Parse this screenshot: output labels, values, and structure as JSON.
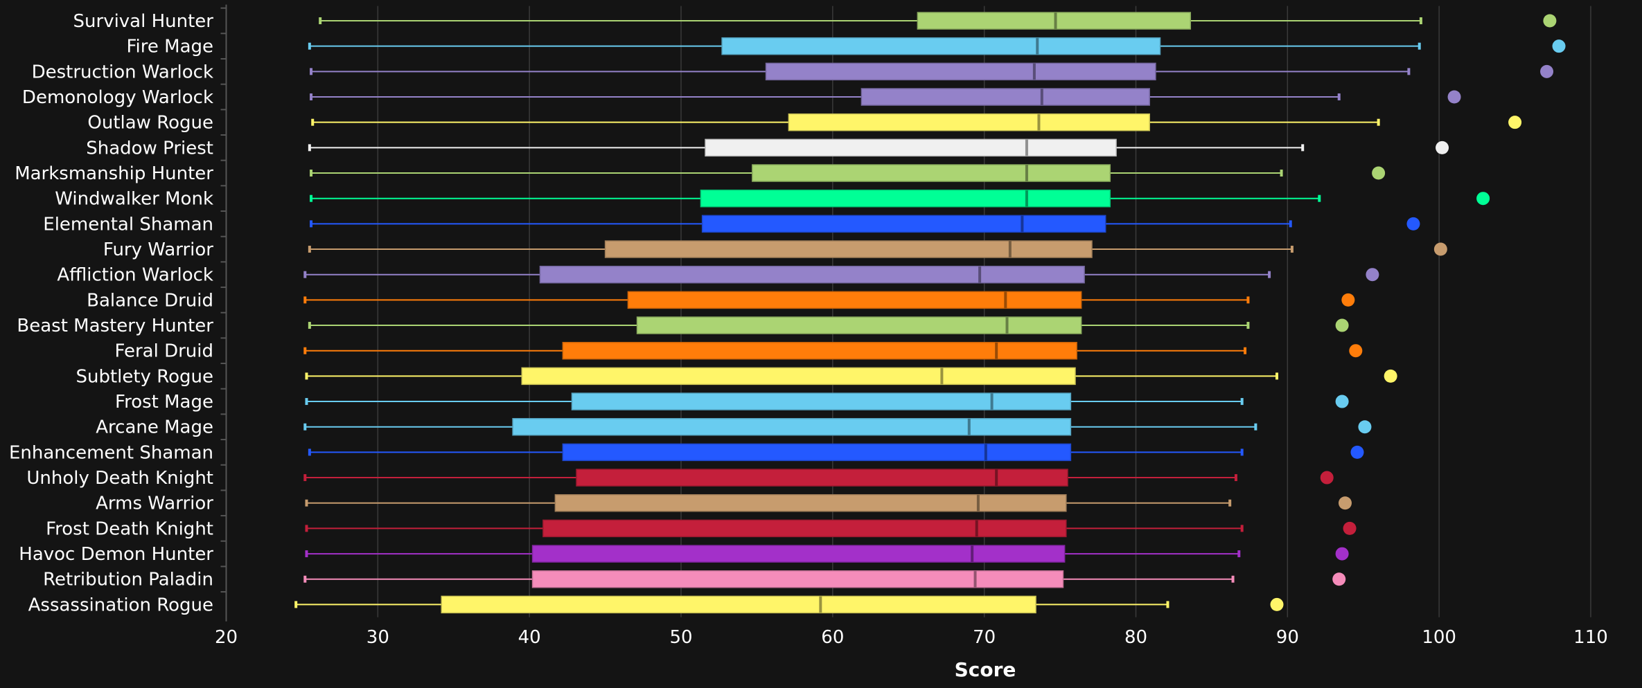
{
  "chart_data": {
    "type": "boxplot",
    "title": "",
    "xlabel": "Score",
    "ylabel": "",
    "xlim": [
      20,
      110
    ],
    "xticks": [
      20,
      30,
      40,
      50,
      60,
      70,
      80,
      90,
      100,
      110
    ],
    "grid": "vertical",
    "legend": "none",
    "background": "#141414",
    "series": [
      {
        "name": "Survival Hunter",
        "color": "#abd473",
        "min": 26.2,
        "q1": 65.6,
        "median": 74.7,
        "q3": 83.6,
        "max": 98.8,
        "point": 107.3
      },
      {
        "name": "Fire Mage",
        "color": "#69ccf0",
        "min": 25.5,
        "q1": 52.7,
        "median": 73.5,
        "q3": 81.6,
        "max": 98.7,
        "point": 107.9
      },
      {
        "name": "Destruction Warlock",
        "color": "#9482c9",
        "min": 25.6,
        "q1": 55.6,
        "median": 73.3,
        "q3": 81.3,
        "max": 98.0,
        "point": 107.1
      },
      {
        "name": "Demonology Warlock",
        "color": "#9482c9",
        "min": 25.6,
        "q1": 61.9,
        "median": 73.8,
        "q3": 80.9,
        "max": 93.4,
        "point": 101.0
      },
      {
        "name": "Outlaw Rogue",
        "color": "#fff569",
        "min": 25.7,
        "q1": 57.1,
        "median": 73.6,
        "q3": 80.9,
        "max": 96.0,
        "point": 105.0
      },
      {
        "name": "Shadow Priest",
        "color": "#f0f0f0",
        "min": 25.5,
        "q1": 51.6,
        "median": 72.8,
        "q3": 78.7,
        "max": 91.0,
        "point": 100.2
      },
      {
        "name": "Marksmanship Hunter",
        "color": "#abd473",
        "min": 25.6,
        "q1": 54.7,
        "median": 72.8,
        "q3": 78.3,
        "max": 89.6,
        "point": 96.0
      },
      {
        "name": "Windwalker Monk",
        "color": "#00ff96",
        "min": 25.6,
        "q1": 51.3,
        "median": 72.8,
        "q3": 78.3,
        "max": 92.1,
        "point": 102.9
      },
      {
        "name": "Elemental Shaman",
        "color": "#2459ff",
        "min": 25.6,
        "q1": 51.4,
        "median": 72.5,
        "q3": 78.0,
        "max": 90.2,
        "point": 98.3
      },
      {
        "name": "Fury Warrior",
        "color": "#c79c6e",
        "min": 25.5,
        "q1": 45.0,
        "median": 71.7,
        "q3": 77.1,
        "max": 90.3,
        "point": 100.1
      },
      {
        "name": "Affliction Warlock",
        "color": "#9482c9",
        "min": 25.2,
        "q1": 40.7,
        "median": 69.7,
        "q3": 76.6,
        "max": 88.8,
        "point": 95.6
      },
      {
        "name": "Balance Druid",
        "color": "#ff7d0a",
        "min": 25.2,
        "q1": 46.5,
        "median": 71.4,
        "q3": 76.4,
        "max": 87.4,
        "point": 94.0
      },
      {
        "name": "Beast Mastery Hunter",
        "color": "#abd473",
        "min": 25.5,
        "q1": 47.1,
        "median": 71.5,
        "q3": 76.4,
        "max": 87.4,
        "point": 93.6
      },
      {
        "name": "Feral Druid",
        "color": "#ff7d0a",
        "min": 25.2,
        "q1": 42.2,
        "median": 70.8,
        "q3": 76.1,
        "max": 87.2,
        "point": 94.5
      },
      {
        "name": "Subtlety Rogue",
        "color": "#fff569",
        "min": 25.3,
        "q1": 39.5,
        "median": 67.2,
        "q3": 76.0,
        "max": 89.3,
        "point": 96.8
      },
      {
        "name": "Frost Mage",
        "color": "#69ccf0",
        "min": 25.3,
        "q1": 42.8,
        "median": 70.5,
        "q3": 75.7,
        "max": 87.0,
        "point": 93.6
      },
      {
        "name": "Arcane Mage",
        "color": "#69ccf0",
        "min": 25.2,
        "q1": 38.9,
        "median": 69.0,
        "q3": 75.7,
        "max": 87.9,
        "point": 95.1
      },
      {
        "name": "Enhancement Shaman",
        "color": "#2459ff",
        "min": 25.5,
        "q1": 42.2,
        "median": 70.1,
        "q3": 75.7,
        "max": 87.0,
        "point": 94.6
      },
      {
        "name": "Unholy Death Knight",
        "color": "#c41f3b",
        "min": 25.2,
        "q1": 43.1,
        "median": 70.8,
        "q3": 75.5,
        "max": 86.6,
        "point": 92.6
      },
      {
        "name": "Arms Warrior",
        "color": "#c79c6e",
        "min": 25.3,
        "q1": 41.7,
        "median": 69.6,
        "q3": 75.4,
        "max": 86.2,
        "point": 93.8
      },
      {
        "name": "Frost Death Knight",
        "color": "#c41f3b",
        "min": 25.3,
        "q1": 40.9,
        "median": 69.5,
        "q3": 75.4,
        "max": 87.0,
        "point": 94.1
      },
      {
        "name": "Havoc Demon Hunter",
        "color": "#a330c9",
        "min": 25.3,
        "q1": 40.2,
        "median": 69.2,
        "q3": 75.3,
        "max": 86.8,
        "point": 93.6
      },
      {
        "name": "Retribution Paladin",
        "color": "#f58cba",
        "min": 25.2,
        "q1": 40.2,
        "median": 69.4,
        "q3": 75.2,
        "max": 86.4,
        "point": 93.4
      },
      {
        "name": "Assassination Rogue",
        "color": "#fff569",
        "min": 24.6,
        "q1": 34.2,
        "median": 59.2,
        "q3": 73.4,
        "max": 82.1,
        "point": 89.3
      }
    ]
  }
}
